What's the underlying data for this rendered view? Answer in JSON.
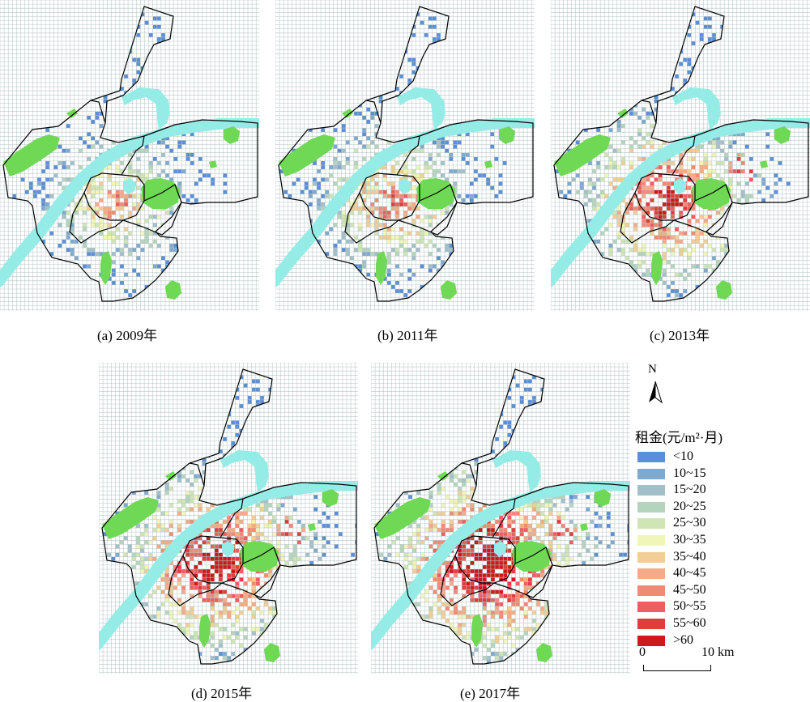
{
  "panels": [
    {
      "id": "a",
      "caption": "(a) 2009年",
      "level": 0
    },
    {
      "id": "b",
      "caption": "(b) 2011年",
      "level": 1
    },
    {
      "id": "c",
      "caption": "(c) 2013年",
      "level": 2
    },
    {
      "id": "d",
      "caption": "(d) 2015年",
      "level": 3
    },
    {
      "id": "e",
      "caption": "(e) 2017年",
      "level": 4
    }
  ],
  "north_label": "N",
  "legend": {
    "title": "租金(元/m²·月)",
    "classes": [
      {
        "label": "<10",
        "color": "#5b8fd6"
      },
      {
        "label": "10~15",
        "color": "#7fa9cf"
      },
      {
        "label": "15~20",
        "color": "#a3bfc9"
      },
      {
        "label": "20~25",
        "color": "#b5d4bd"
      },
      {
        "label": "25~30",
        "color": "#cfe5b6"
      },
      {
        "label": "30~35",
        "color": "#f0f5b8"
      },
      {
        "label": "35~40",
        "color": "#f2cd96"
      },
      {
        "label": "40~45",
        "color": "#f2ab88"
      },
      {
        "label": "45~50",
        "color": "#ef8a76"
      },
      {
        "label": "50~55",
        "color": "#e9605e"
      },
      {
        "label": "55~60",
        "color": "#e23c3c"
      },
      {
        "label": ">60",
        "color": "#cc1a1a"
      }
    ]
  },
  "scale_bar": {
    "start_label": "0",
    "end_label": "10 km"
  },
  "map_colors": {
    "grid": "#b9c6c6",
    "river": "#95ece6",
    "green": "#6fd855",
    "boundary": "#000000"
  }
}
